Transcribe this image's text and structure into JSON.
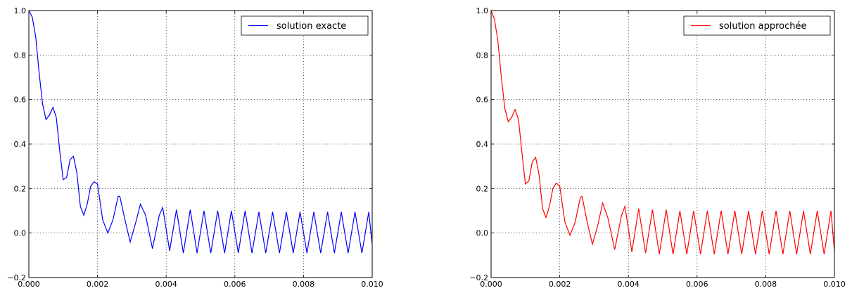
{
  "chart_data": [
    {
      "type": "line",
      "xlim": [
        0.0,
        0.01
      ],
      "ylim": [
        -0.2,
        1.0
      ],
      "xticks": [
        "0.000",
        "0.002",
        "0.004",
        "0.006",
        "0.008",
        "0.010"
      ],
      "yticks": [
        "−0.2",
        "0.0",
        "0.2",
        "0.4",
        "0.6",
        "0.8",
        "1.0"
      ],
      "grid": true,
      "legend_position": "top-right",
      "series": [
        {
          "name": "solution exacte",
          "color": "#0000ff",
          "x": [
            0.0,
            0.0001,
            0.0002,
            0.0003,
            0.0004,
            0.0005,
            0.0006,
            0.0007,
            0.0008,
            0.0009,
            0.001,
            0.0011,
            0.0012,
            0.0013,
            0.0014,
            0.0015,
            0.0016,
            0.0017,
            0.0018,
            0.0019,
            0.002,
            0.00215,
            0.0023,
            0.00245,
            0.0026,
            0.00265,
            0.0028,
            0.00295,
            0.0031,
            0.00325,
            0.0034,
            0.0036,
            0.0038,
            0.0039,
            0.0041,
            0.0043,
            0.0045,
            0.0047,
            0.0049,
            0.0051,
            0.0053,
            0.0055,
            0.0057,
            0.0059,
            0.0061,
            0.0063,
            0.0065,
            0.0067,
            0.0069,
            0.0071,
            0.0073,
            0.0075,
            0.0077,
            0.0079,
            0.0081,
            0.0083,
            0.0085,
            0.0087,
            0.0089,
            0.0091,
            0.0093,
            0.0095,
            0.0097,
            0.0099,
            0.01
          ],
          "y": [
            1.0,
            0.97,
            0.88,
            0.72,
            0.58,
            0.51,
            0.53,
            0.565,
            0.52,
            0.37,
            0.24,
            0.25,
            0.33,
            0.345,
            0.27,
            0.12,
            0.08,
            0.13,
            0.21,
            0.23,
            0.22,
            0.06,
            0.0,
            0.06,
            0.165,
            0.165,
            0.06,
            -0.04,
            0.04,
            0.13,
            0.08,
            -0.07,
            0.08,
            0.115,
            -0.08,
            0.105,
            -0.09,
            0.105,
            -0.09,
            0.1,
            -0.09,
            0.1,
            -0.09,
            0.1,
            -0.09,
            0.1,
            -0.09,
            0.095,
            -0.09,
            0.095,
            -0.09,
            0.095,
            -0.09,
            0.095,
            -0.09,
            0.095,
            -0.09,
            0.095,
            -0.09,
            0.095,
            -0.09,
            0.095,
            -0.09,
            0.095,
            -0.05
          ]
        }
      ]
    },
    {
      "type": "line",
      "xlim": [
        0.0,
        0.01
      ],
      "ylim": [
        -0.2,
        1.0
      ],
      "xticks": [
        "0.000",
        "0.002",
        "0.004",
        "0.006",
        "0.008",
        "0.010"
      ],
      "yticks": [
        "−0.2",
        "0.0",
        "0.2",
        "0.4",
        "0.6",
        "0.8",
        "1.0"
      ],
      "grid": true,
      "legend_position": "top-right",
      "series": [
        {
          "name": "solution approchée",
          "color": "#ff0000",
          "x": [
            0.0,
            0.0001,
            0.0002,
            0.0003,
            0.0004,
            0.0005,
            0.0006,
            0.0007,
            0.0008,
            0.0009,
            0.001,
            0.0011,
            0.0012,
            0.0013,
            0.0014,
            0.0015,
            0.0016,
            0.0017,
            0.0018,
            0.0019,
            0.002,
            0.00215,
            0.0023,
            0.00245,
            0.0026,
            0.00265,
            0.0028,
            0.00295,
            0.0031,
            0.00325,
            0.0034,
            0.0036,
            0.0038,
            0.0039,
            0.0041,
            0.0043,
            0.0045,
            0.0047,
            0.0049,
            0.0051,
            0.0053,
            0.0055,
            0.0057,
            0.0059,
            0.0061,
            0.0063,
            0.0065,
            0.0067,
            0.0069,
            0.0071,
            0.0073,
            0.0075,
            0.0077,
            0.0079,
            0.0081,
            0.0083,
            0.0085,
            0.0087,
            0.0089,
            0.0091,
            0.0093,
            0.0095,
            0.0097,
            0.0099,
            0.01
          ],
          "y": [
            1.0,
            0.96,
            0.86,
            0.7,
            0.56,
            0.5,
            0.52,
            0.555,
            0.51,
            0.36,
            0.22,
            0.235,
            0.32,
            0.34,
            0.26,
            0.11,
            0.07,
            0.12,
            0.2,
            0.225,
            0.21,
            0.05,
            -0.01,
            0.05,
            0.16,
            0.165,
            0.05,
            -0.05,
            0.03,
            0.135,
            0.07,
            -0.075,
            0.08,
            0.12,
            -0.085,
            0.11,
            -0.09,
            0.105,
            -0.095,
            0.105,
            -0.095,
            0.1,
            -0.095,
            0.1,
            -0.095,
            0.1,
            -0.095,
            0.1,
            -0.095,
            0.1,
            -0.095,
            0.1,
            -0.095,
            0.1,
            -0.095,
            0.1,
            -0.095,
            0.1,
            -0.095,
            0.1,
            -0.095,
            0.1,
            -0.095,
            0.1,
            -0.08
          ]
        }
      ]
    }
  ]
}
